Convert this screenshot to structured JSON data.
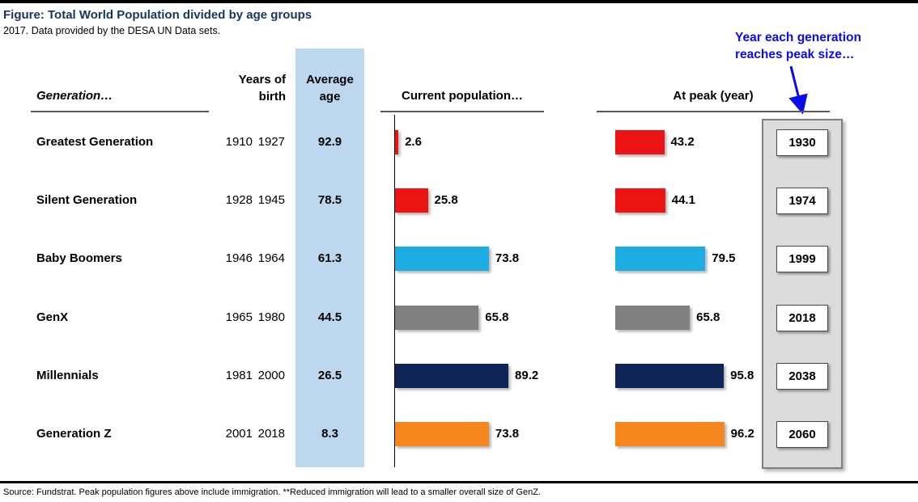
{
  "title": "Figure: Total World Population divided by age groups",
  "subtitle": "2017. Data provided by the DESA UN Data sets.",
  "annotation": {
    "lines": [
      "Year each generation",
      "reaches peak size…"
    ]
  },
  "headers": {
    "generation": "Generation…",
    "years_of_birth": [
      "Years of",
      "birth"
    ],
    "average_age": [
      "Average",
      "age"
    ],
    "current_population": "Current population…",
    "at_peak": "At peak (year)"
  },
  "table": {
    "rows": [
      {
        "generation": "Greatest Generation",
        "birth_start": "1910",
        "birth_end": "1927",
        "average_age": "92.9",
        "current_population": "2.6",
        "peak_population": "43.2",
        "peak_year": "1930"
      },
      {
        "generation": "Silent Generation",
        "birth_start": "1928",
        "birth_end": "1945",
        "average_age": "78.5",
        "current_population": "25.8",
        "peak_population": "44.1",
        "peak_year": "1974"
      },
      {
        "generation": "Baby Boomers",
        "birth_start": "1946",
        "birth_end": "1964",
        "average_age": "61.3",
        "current_population": "73.8",
        "peak_population": "79.5",
        "peak_year": "1999"
      },
      {
        "generation": "GenX",
        "birth_start": "1965",
        "birth_end": "1980",
        "average_age": "44.5",
        "current_population": "65.8",
        "peak_population": "65.8",
        "peak_year": "2018"
      },
      {
        "generation": "Millennials",
        "birth_start": "1981",
        "birth_end": "2000",
        "average_age": "26.5",
        "current_population": "89.2",
        "peak_population": "95.8",
        "peak_year": "2038"
      },
      {
        "generation": "Generation Z",
        "birth_start": "2001",
        "birth_end": "2018",
        "average_age": "8.3",
        "current_population": "73.8",
        "peak_population": "96.2",
        "peak_year": "2060"
      }
    ]
  },
  "chart_data": {
    "type": "bar",
    "orientation": "horizontal",
    "categories": [
      "Greatest Generation",
      "Silent Generation",
      "Baby Boomers",
      "GenX",
      "Millennials",
      "Generation Z"
    ],
    "series": [
      {
        "name": "Current population…",
        "values": [
          2.6,
          25.8,
          73.8,
          65.8,
          89.2,
          73.8
        ]
      },
      {
        "name": "At peak (year)",
        "values": [
          43.2,
          44.1,
          79.5,
          65.8,
          95.8,
          96.2
        ]
      }
    ],
    "peak_years": [
      "1930",
      "1974",
      "1999",
      "2018",
      "2038",
      "2060"
    ],
    "bar_colors": [
      "#ec1313",
      "#ec1313",
      "#1cade4",
      "#808080",
      "#0f2557",
      "#f6871f"
    ],
    "value_labels": true,
    "xlim": [
      0,
      100
    ],
    "legend": "none",
    "grid": false
  },
  "colors": {
    "title_navy": "#17365d",
    "annotation_blue": "#0b0bf0",
    "avg_band_blue": "#bdd7ee",
    "panel_gray": "#dcdcdc",
    "rule_black": "#000000"
  },
  "source_note": "Source: Fundstrat.  Peak population figures above include immigration.  **Reduced immigration will lead to a smaller overall size of GenZ."
}
